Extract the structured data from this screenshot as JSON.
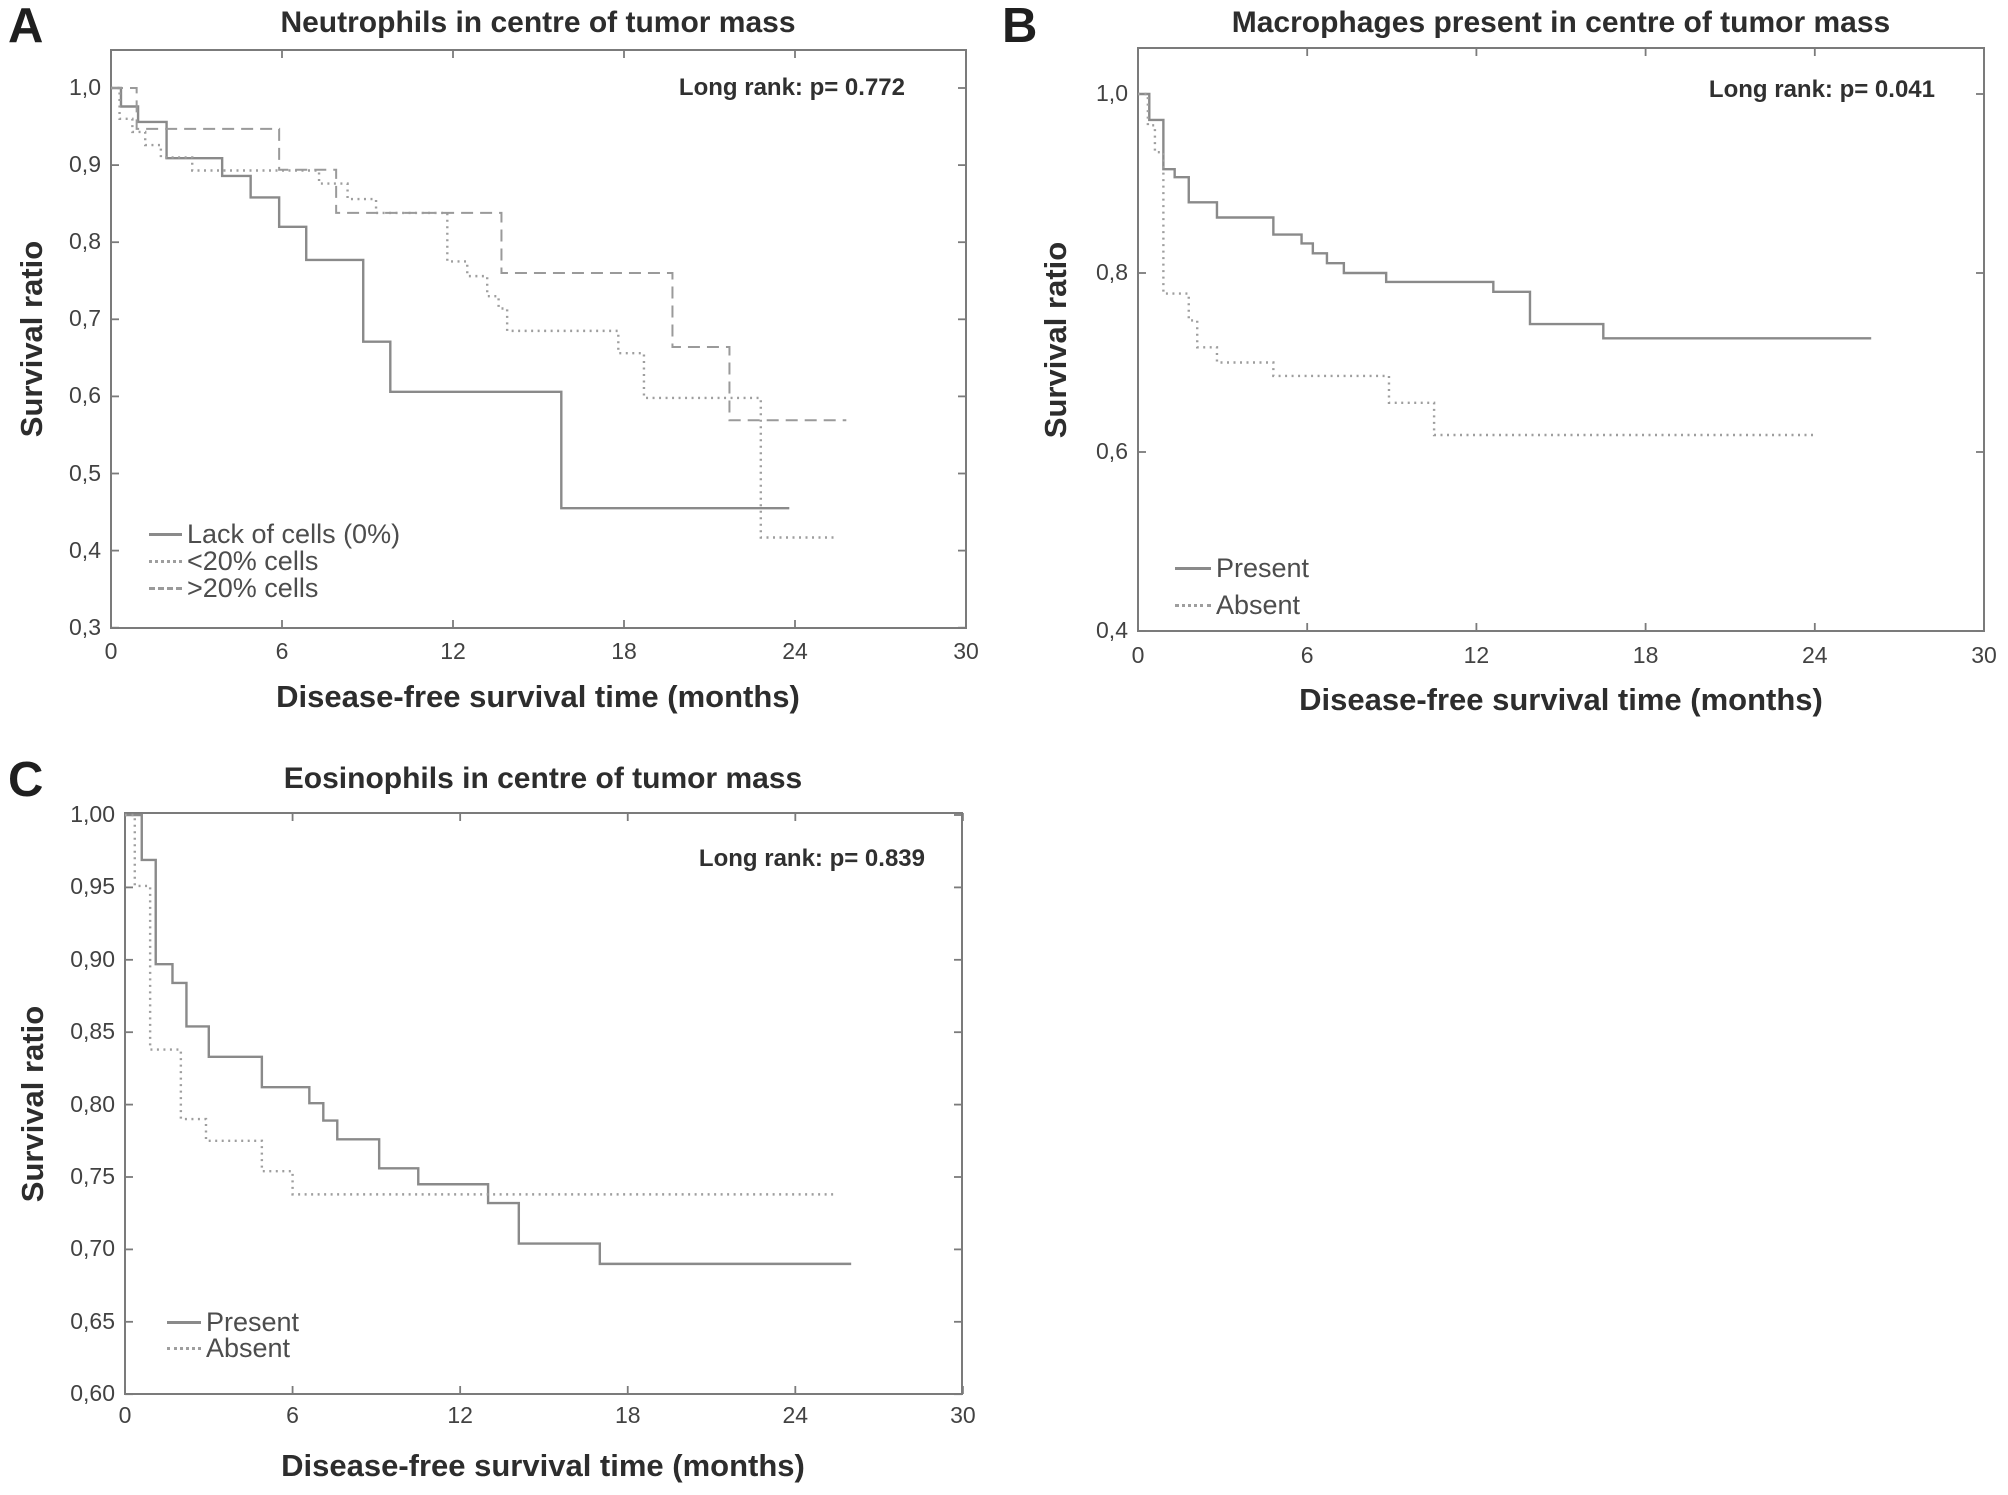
{
  "figure_type": "kaplan_meier_survival_curves",
  "chart_data": [
    {
      "type": "line",
      "subtype": "step-survival",
      "panel_letter": "A",
      "title": "Neutrophils in centre of tumor mass",
      "annotation": "Long rank: p= 0.772",
      "xlabel": "Disease-free survival time (months)",
      "ylabel": "Survival ratio",
      "xlim": [
        0,
        30
      ],
      "ylim": [
        0.3,
        1.05
      ],
      "xticks": [
        0,
        6,
        12,
        18,
        24,
        30
      ],
      "xtick_labels": [
        "0",
        "6",
        "12",
        "18",
        "24",
        "30"
      ],
      "yticks": [
        1.0,
        0.9,
        0.8,
        0.7,
        0.6,
        0.5,
        0.4,
        0.3
      ],
      "ytick_labels": [
        "1,0",
        "0,9",
        "0,8",
        "0,7",
        "0,6",
        "0,5",
        "0,4",
        "0,3"
      ],
      "legend": {
        "position": "lower left",
        "entries": [
          {
            "label": "Lack of cells (0%)",
            "style": "solid"
          },
          {
            "label": "<20% cells",
            "style": "dotted"
          },
          {
            "label": ">20% cells",
            "style": "dashed"
          }
        ]
      },
      "series": [
        {
          "name": "Lack of cells (0%)",
          "style": "solid",
          "start": 1.0,
          "end": 23.8,
          "steps": [
            [
              0.35,
              0.976
            ],
            [
              0.95,
              0.956
            ],
            [
              1.95,
              0.909
            ],
            [
              3.9,
              0.886
            ],
            [
              4.9,
              0.858
            ],
            [
              5.9,
              0.82
            ],
            [
              6.85,
              0.777
            ],
            [
              8.85,
              0.671
            ],
            [
              9.8,
              0.606
            ],
            [
              15.8,
              0.455
            ]
          ]
        },
        {
          "name": "<20% cells",
          "style": "dotted",
          "start": 1.0,
          "end": 25.5,
          "steps": [
            [
              0.3,
              0.96
            ],
            [
              0.75,
              0.943
            ],
            [
              1.2,
              0.926
            ],
            [
              1.75,
              0.91
            ],
            [
              2.85,
              0.893
            ],
            [
              7.3,
              0.876
            ],
            [
              8.3,
              0.856
            ],
            [
              9.3,
              0.838
            ],
            [
              11.8,
              0.775
            ],
            [
              12.5,
              0.756
            ],
            [
              13.2,
              0.73
            ],
            [
              13.6,
              0.714
            ],
            [
              13.9,
              0.685
            ],
            [
              17.8,
              0.656
            ],
            [
              18.7,
              0.598
            ],
            [
              22.8,
              0.417
            ]
          ]
        },
        {
          "name": ">20% cells",
          "style": "dashed",
          "start": 1.0,
          "end": 25.8,
          "steps": [
            [
              0.9,
              0.947
            ],
            [
              5.9,
              0.894
            ],
            [
              7.9,
              0.838
            ],
            [
              13.7,
              0.76
            ],
            [
              19.7,
              0.664
            ],
            [
              21.7,
              0.569
            ]
          ]
        }
      ]
    },
    {
      "type": "line",
      "subtype": "step-survival",
      "panel_letter": "B",
      "title": "Macrophages present in centre of tumor mass",
      "annotation": "Long rank: p= 0.041",
      "xlabel": "Disease-free survival time (months)",
      "ylabel": "Survival ratio",
      "xlim": [
        0,
        30
      ],
      "ylim": [
        0.4,
        1.05
      ],
      "xticks": [
        0,
        6,
        12,
        18,
        24,
        30
      ],
      "xtick_labels": [
        "0",
        "6",
        "12",
        "18",
        "24",
        "30"
      ],
      "yticks": [
        1.0,
        0.8,
        0.6,
        0.4
      ],
      "ytick_labels": [
        "1,0",
        "0,8",
        "0,6",
        "0,4"
      ],
      "legend": {
        "position": "lower left",
        "entries": [
          {
            "label": "Present",
            "style": "solid"
          },
          {
            "label": "Absent",
            "style": "dotted"
          }
        ]
      },
      "series": [
        {
          "name": "Present",
          "style": "solid",
          "start": 1.0,
          "end": 26.0,
          "steps": [
            [
              0.4,
              0.971
            ],
            [
              0.9,
              0.916
            ],
            [
              1.3,
              0.907
            ],
            [
              1.8,
              0.879
            ],
            [
              2.8,
              0.862
            ],
            [
              4.8,
              0.843
            ],
            [
              5.8,
              0.833
            ],
            [
              6.2,
              0.822
            ],
            [
              6.7,
              0.811
            ],
            [
              7.3,
              0.8
            ],
            [
              8.8,
              0.79
            ],
            [
              12.6,
              0.779
            ],
            [
              13.9,
              0.743
            ],
            [
              16.5,
              0.727
            ]
          ]
        },
        {
          "name": "Absent",
          "style": "dotted",
          "start": 1.0,
          "end": 24.0,
          "steps": [
            [
              0.35,
              0.965
            ],
            [
              0.6,
              0.935
            ],
            [
              0.9,
              0.777
            ],
            [
              1.8,
              0.747
            ],
            [
              2.1,
              0.717
            ],
            [
              2.8,
              0.7
            ],
            [
              4.8,
              0.685
            ],
            [
              8.9,
              0.655
            ],
            [
              10.5,
              0.619
            ]
          ]
        }
      ]
    },
    {
      "type": "line",
      "subtype": "step-survival",
      "panel_letter": "C",
      "title": "Eosinophils in centre of tumor mass",
      "annotation": "Long rank: p= 0.839",
      "xlabel": "Disease-free survival time (months)",
      "ylabel": "Survival ratio",
      "xlim": [
        0,
        30
      ],
      "ylim": [
        0.6,
        1.0
      ],
      "xticks": [
        0,
        6,
        12,
        18,
        24,
        30
      ],
      "xtick_labels": [
        "0",
        "6",
        "12",
        "18",
        "24",
        "30"
      ],
      "yticks": [
        1.0,
        0.95,
        0.9,
        0.85,
        0.8,
        0.75,
        0.7,
        0.65,
        0.6
      ],
      "ytick_labels": [
        "1,00",
        "0,95",
        "0,90",
        "0,85",
        "0,80",
        "0,75",
        "0,70",
        "0,65",
        "0,60"
      ],
      "legend": {
        "position": "lower left",
        "entries": [
          {
            "label": "Present",
            "style": "solid"
          },
          {
            "label": "Absent",
            "style": "dotted"
          }
        ]
      },
      "series": [
        {
          "name": "Present",
          "style": "solid",
          "start": 1.0,
          "end": 26.0,
          "steps": [
            [
              0.6,
              0.969
            ],
            [
              1.1,
              0.897
            ],
            [
              1.7,
              0.884
            ],
            [
              2.2,
              0.854
            ],
            [
              3.0,
              0.833
            ],
            [
              4.9,
              0.812
            ],
            [
              6.6,
              0.801
            ],
            [
              7.1,
              0.789
            ],
            [
              7.6,
              0.776
            ],
            [
              9.1,
              0.756
            ],
            [
              10.5,
              0.745
            ],
            [
              13.0,
              0.732
            ],
            [
              14.1,
              0.704
            ],
            [
              17.0,
              0.69
            ]
          ]
        },
        {
          "name": "Absent",
          "style": "dotted",
          "start": 1.0,
          "end": 25.5,
          "steps": [
            [
              0.35,
              0.951
            ],
            [
              0.9,
              0.838
            ],
            [
              2.0,
              0.79
            ],
            [
              2.9,
              0.775
            ],
            [
              4.9,
              0.754
            ],
            [
              6.0,
              0.738
            ]
          ]
        }
      ]
    }
  ],
  "colors": {
    "solid_curve": "#8a8a8a",
    "dotted_curve": "#9e9e9e",
    "dashed_curve": "#9a9a9a",
    "axis": "#7b7b7b",
    "background": "#ffffff"
  }
}
